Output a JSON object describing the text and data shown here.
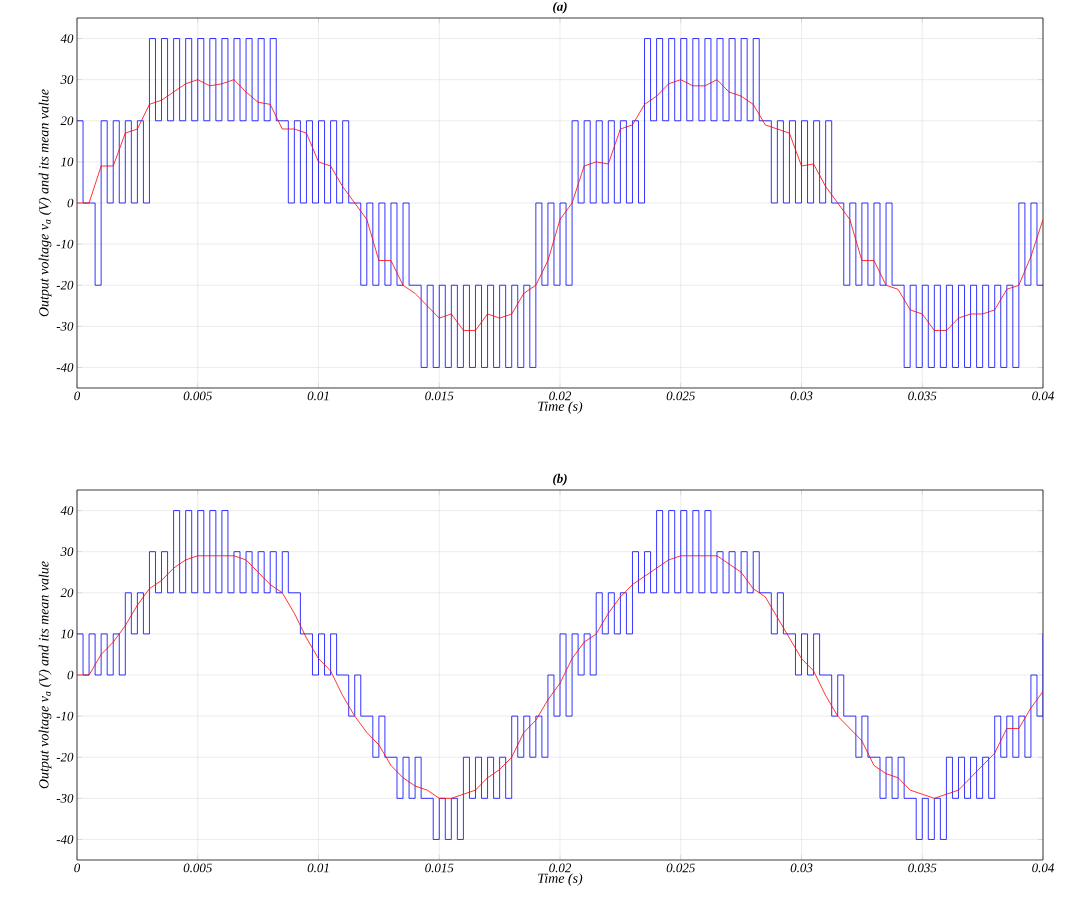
{
  "chart_data": [
    {
      "type": "line",
      "title": "(a)",
      "xlabel": "Time (s)",
      "ylabel": "Output voltage v$_{a}$ (V) and its mean value",
      "xlim": [
        0,
        0.04
      ],
      "ylim": [
        -45,
        45
      ],
      "xticks": [
        0,
        0.005,
        0.01,
        0.015,
        0.02,
        0.025,
        0.03,
        0.035,
        0.04
      ],
      "yticks": [
        -40,
        -30,
        -20,
        -10,
        0,
        10,
        20,
        30,
        40
      ],
      "grid": true,
      "series": [
        {
          "type": "step",
          "color": "#0000ff",
          "x": [
            0,
            0.00025,
            0.0005,
            0.00075,
            0.001,
            0.00125,
            0.0015,
            0.00175,
            0.002,
            0.00225,
            0.0025,
            0.00275,
            0.003,
            0.00325,
            0.0035,
            0.00375,
            0.004,
            0.00425,
            0.0045,
            0.00475,
            0.005,
            0.00525,
            0.0055,
            0.00575,
            0.006,
            0.00625,
            0.0065,
            0.00675,
            0.007,
            0.00725,
            0.0075,
            0.00775,
            0.008,
            0.00825,
            0.0085,
            0.00875,
            0.009,
            0.00925,
            0.0095,
            0.00975,
            0.01,
            0.01025,
            0.0105,
            0.01075,
            0.011,
            0.01125,
            0.0115,
            0.01175,
            0.012,
            0.01225,
            0.0125,
            0.01275,
            0.013,
            0.01325,
            0.0135,
            0.01375,
            0.014,
            0.01425,
            0.0145,
            0.01475,
            0.015,
            0.01525,
            0.0155,
            0.01575,
            0.016,
            0.01625,
            0.0165,
            0.01675,
            0.017,
            0.01725,
            0.0175,
            0.01775,
            0.018,
            0.01825,
            0.0185,
            0.01875,
            0.019,
            0.01925,
            0.0195,
            0.01975,
            0.02,
            0.02025,
            0.0205,
            0.02075,
            0.021,
            0.02125,
            0.0215,
            0.02175,
            0.022,
            0.02225,
            0.0225,
            0.02275,
            0.023,
            0.02325,
            0.0235,
            0.02375,
            0.024,
            0.02425,
            0.0245,
            0.02475,
            0.025,
            0.02525,
            0.0255,
            0.02575,
            0.026,
            0.02625,
            0.0265,
            0.02675,
            0.027,
            0.02725,
            0.0275,
            0.02775,
            0.028,
            0.02825,
            0.0285,
            0.02875,
            0.029,
            0.02925,
            0.0295,
            0.02975,
            0.03,
            0.03025,
            0.0305,
            0.03075,
            0.031,
            0.03125,
            0.0315,
            0.03175,
            0.032,
            0.03225,
            0.0325,
            0.03275,
            0.033,
            0.03325,
            0.0335,
            0.03375,
            0.034,
            0.03425,
            0.0345,
            0.03475,
            0.035,
            0.03525,
            0.0355,
            0.03575,
            0.036,
            0.03625,
            0.0365,
            0.03675,
            0.037,
            0.03725,
            0.0375,
            0.03775,
            0.038,
            0.03825,
            0.0385,
            0.03875,
            0.039,
            0.03925,
            0.0395,
            0.03975,
            0.04
          ],
          "values": [
            20,
            0,
            0,
            -20,
            20,
            0,
            20,
            0,
            20,
            0,
            20,
            0,
            40,
            20,
            40,
            20,
            40,
            20,
            40,
            20,
            40,
            20,
            40,
            20,
            40,
            20,
            40,
            20,
            40,
            20,
            40,
            20,
            40,
            20,
            20,
            0,
            20,
            0,
            20,
            0,
            20,
            0,
            20,
            0,
            20,
            0,
            0,
            -20,
            0,
            -20,
            0,
            -20,
            0,
            -20,
            0,
            -20,
            -20,
            -40,
            -20,
            -40,
            -20,
            -40,
            -20,
            -40,
            -20,
            -40,
            -20,
            -40,
            -20,
            -40,
            -20,
            -40,
            -20,
            -40,
            -20,
            -40,
            0,
            -20,
            0,
            -20,
            0,
            -20,
            20,
            0,
            20,
            0,
            20,
            0,
            20,
            0,
            20,
            0,
            20,
            0,
            40,
            20,
            40,
            20,
            40,
            20,
            40,
            20,
            40,
            20,
            40,
            20,
            40,
            20,
            40,
            20,
            40,
            20,
            40,
            20,
            20,
            0,
            20,
            0,
            20,
            0,
            20,
            0,
            20,
            0,
            20,
            0,
            0,
            -20,
            0,
            -20,
            0,
            -20,
            0,
            -20,
            0,
            -20,
            -20,
            -40,
            -20,
            -40,
            -20,
            -40,
            -20,
            -40,
            -20,
            -40,
            -20,
            -40,
            -20,
            -40,
            -20,
            -40,
            -20,
            -40,
            -20,
            -40,
            0,
            -20,
            0,
            -20,
            -20
          ]
        },
        {
          "type": "line",
          "color": "#ff0000",
          "x": [
            0,
            0.0005,
            0.001,
            0.0015,
            0.002,
            0.0025,
            0.003,
            0.0035,
            0.004,
            0.0045,
            0.005,
            0.0055,
            0.006,
            0.0065,
            0.007,
            0.0075,
            0.008,
            0.0085,
            0.009,
            0.0095,
            0.01,
            0.0105,
            0.011,
            0.0115,
            0.012,
            0.0125,
            0.013,
            0.0135,
            0.014,
            0.0145,
            0.015,
            0.0155,
            0.016,
            0.0165,
            0.017,
            0.0175,
            0.018,
            0.0185,
            0.019,
            0.0195,
            0.02,
            0.0205,
            0.021,
            0.0215,
            0.022,
            0.0225,
            0.023,
            0.0235,
            0.024,
            0.0245,
            0.025,
            0.0255,
            0.026,
            0.0265,
            0.027,
            0.0275,
            0.028,
            0.0285,
            0.029,
            0.0295,
            0.03,
            0.0305,
            0.031,
            0.0315,
            0.032,
            0.0325,
            0.033,
            0.0335,
            0.034,
            0.0345,
            0.035,
            0.0355,
            0.036,
            0.0365,
            0.037,
            0.0375,
            0.038,
            0.0385,
            0.039,
            0.0395,
            0.04
          ],
          "values": [
            0,
            0,
            9,
            9,
            17,
            18,
            24,
            25,
            27,
            29,
            30,
            28.5,
            29,
            30,
            27,
            24.5,
            24,
            18,
            18,
            17,
            10,
            9,
            4,
            0,
            -4,
            -14,
            -14,
            -20,
            -22,
            -25,
            -28,
            -27,
            -31,
            -31,
            -27,
            -28,
            -27,
            -22,
            -20,
            -14,
            -4,
            0,
            9,
            10,
            9.5,
            18,
            19,
            24,
            26,
            29,
            30,
            28.5,
            28.5,
            30,
            27,
            26,
            24,
            19,
            18,
            17,
            9,
            9.5,
            4,
            0,
            -4,
            -14,
            -14,
            -20,
            -21,
            -26,
            -27,
            -31,
            -31,
            -28,
            -27,
            -27,
            -26,
            -21,
            -20,
            -13,
            -4
          ]
        }
      ]
    },
    {
      "type": "line",
      "title": "(b)",
      "xlabel": "Time (s)",
      "ylabel": "Output voltage v$_{a}$ (V) and its mean value",
      "xlim": [
        0,
        0.04
      ],
      "ylim": [
        -45,
        45
      ],
      "xticks": [
        0,
        0.005,
        0.01,
        0.015,
        0.02,
        0.025,
        0.03,
        0.035,
        0.04
      ],
      "yticks": [
        -40,
        -30,
        -20,
        -10,
        0,
        10,
        20,
        30,
        40
      ],
      "grid": true,
      "series": [
        {
          "type": "step",
          "color": "#0000ff",
          "x": [
            0,
            0.00025,
            0.0005,
            0.00075,
            0.001,
            0.00125,
            0.0015,
            0.00175,
            0.002,
            0.00225,
            0.0025,
            0.00275,
            0.003,
            0.00325,
            0.0035,
            0.00375,
            0.004,
            0.00425,
            0.0045,
            0.00475,
            0.005,
            0.00525,
            0.0055,
            0.00575,
            0.006,
            0.00625,
            0.0065,
            0.00675,
            0.007,
            0.00725,
            0.0075,
            0.00775,
            0.008,
            0.00825,
            0.0085,
            0.00875,
            0.009,
            0.00925,
            0.0095,
            0.00975,
            0.01,
            0.01025,
            0.0105,
            0.01075,
            0.011,
            0.01125,
            0.0115,
            0.01175,
            0.012,
            0.01225,
            0.0125,
            0.01275,
            0.013,
            0.01325,
            0.0135,
            0.01375,
            0.014,
            0.01425,
            0.0145,
            0.01475,
            0.015,
            0.01525,
            0.0155,
            0.01575,
            0.016,
            0.01625,
            0.0165,
            0.01675,
            0.017,
            0.01725,
            0.0175,
            0.01775,
            0.018,
            0.01825,
            0.0185,
            0.01875,
            0.019,
            0.01925,
            0.0195,
            0.01975,
            0.02,
            0.02025,
            0.0205,
            0.02075,
            0.021,
            0.02125,
            0.0215,
            0.02175,
            0.022,
            0.02225,
            0.0225,
            0.02275,
            0.023,
            0.02325,
            0.0235,
            0.02375,
            0.024,
            0.02425,
            0.0245,
            0.02475,
            0.025,
            0.02525,
            0.0255,
            0.02575,
            0.026,
            0.02625,
            0.0265,
            0.02675,
            0.027,
            0.02725,
            0.0275,
            0.02775,
            0.028,
            0.02825,
            0.0285,
            0.02875,
            0.029,
            0.02925,
            0.0295,
            0.02975,
            0.03,
            0.03025,
            0.0305,
            0.03075,
            0.031,
            0.03125,
            0.0315,
            0.03175,
            0.032,
            0.03225,
            0.0325,
            0.03275,
            0.033,
            0.03325,
            0.0335,
            0.03375,
            0.034,
            0.03425,
            0.0345,
            0.03475,
            0.035,
            0.03525,
            0.0355,
            0.03575,
            0.036,
            0.03625,
            0.0365,
            0.03675,
            0.037,
            0.03725,
            0.0375,
            0.03775,
            0.038,
            0.03825,
            0.0385,
            0.03875,
            0.039,
            0.03925,
            0.0395,
            0.03975,
            0.04
          ],
          "values": [
            10,
            0,
            10,
            0,
            10,
            0,
            10,
            0,
            20,
            10,
            20,
            10,
            30,
            20,
            30,
            20,
            40,
            20,
            40,
            20,
            40,
            20,
            40,
            20,
            40,
            20,
            30,
            20,
            30,
            20,
            30,
            20,
            30,
            20,
            30,
            20,
            20,
            10,
            10,
            0,
            10,
            0,
            10,
            0,
            0,
            -10,
            0,
            -10,
            -10,
            -20,
            -10,
            -20,
            -20,
            -30,
            -20,
            -30,
            -20,
            -30,
            -30,
            -40,
            -30,
            -40,
            -30,
            -40,
            -20,
            -30,
            -20,
            -30,
            -20,
            -30,
            -20,
            -30,
            -10,
            -20,
            -10,
            -20,
            -10,
            -20,
            0,
            -10,
            10,
            -10,
            10,
            0,
            10,
            0,
            20,
            10,
            20,
            10,
            20,
            10,
            30,
            20,
            30,
            20,
            40,
            20,
            40,
            20,
            40,
            20,
            40,
            20,
            40,
            20,
            30,
            20,
            30,
            20,
            30,
            20,
            30,
            20,
            20,
            10,
            20,
            10,
            10,
            0,
            10,
            0,
            10,
            0,
            0,
            -10,
            0,
            -10,
            -10,
            -20,
            -10,
            -20,
            -20,
            -30,
            -20,
            -30,
            -20,
            -30,
            -30,
            -40,
            -30,
            -40,
            -30,
            -40,
            -20,
            -30,
            -20,
            -30,
            -20,
            -30,
            -20,
            -30,
            -10,
            -20,
            -10,
            -20,
            -10,
            -20,
            0,
            -10,
            10
          ]
        },
        {
          "type": "line",
          "color": "#ff0000",
          "x": [
            0,
            0.0005,
            0.001,
            0.0015,
            0.002,
            0.0025,
            0.003,
            0.0035,
            0.004,
            0.0045,
            0.005,
            0.0055,
            0.006,
            0.0065,
            0.007,
            0.0075,
            0.008,
            0.0085,
            0.009,
            0.0095,
            0.01,
            0.0105,
            0.011,
            0.0115,
            0.012,
            0.0125,
            0.013,
            0.0135,
            0.014,
            0.0145,
            0.015,
            0.0155,
            0.016,
            0.0165,
            0.017,
            0.0175,
            0.018,
            0.0185,
            0.019,
            0.0195,
            0.02,
            0.0205,
            0.021,
            0.0215,
            0.022,
            0.0225,
            0.023,
            0.0235,
            0.024,
            0.0245,
            0.025,
            0.0255,
            0.026,
            0.0265,
            0.027,
            0.0275,
            0.028,
            0.0285,
            0.029,
            0.0295,
            0.03,
            0.0305,
            0.031,
            0.0315,
            0.032,
            0.0325,
            0.033,
            0.0335,
            0.034,
            0.0345,
            0.035,
            0.0355,
            0.036,
            0.0365,
            0.037,
            0.0375,
            0.038,
            0.0385,
            0.039,
            0.0395,
            0.04
          ],
          "values": [
            0,
            0,
            5,
            8,
            12,
            17,
            21,
            23,
            26,
            28,
            29,
            29,
            29,
            29,
            28,
            25,
            22,
            20,
            15,
            9,
            4,
            1,
            -5,
            -10,
            -14,
            -17,
            -22,
            -25,
            -27,
            -28,
            -30,
            -30,
            -29,
            -28,
            -25,
            -23,
            -20,
            -14,
            -11,
            -6,
            -2,
            4,
            8,
            10,
            15,
            19,
            22,
            24,
            26,
            28,
            29,
            29,
            29,
            29,
            27,
            25,
            21,
            19,
            14,
            9,
            4,
            1,
            -5,
            -10,
            -13,
            -16,
            -22,
            -24,
            -25,
            -28,
            -29,
            -30,
            -29,
            -28,
            -25,
            -22,
            -19,
            -13,
            -13,
            -8,
            -4
          ]
        }
      ]
    }
  ]
}
